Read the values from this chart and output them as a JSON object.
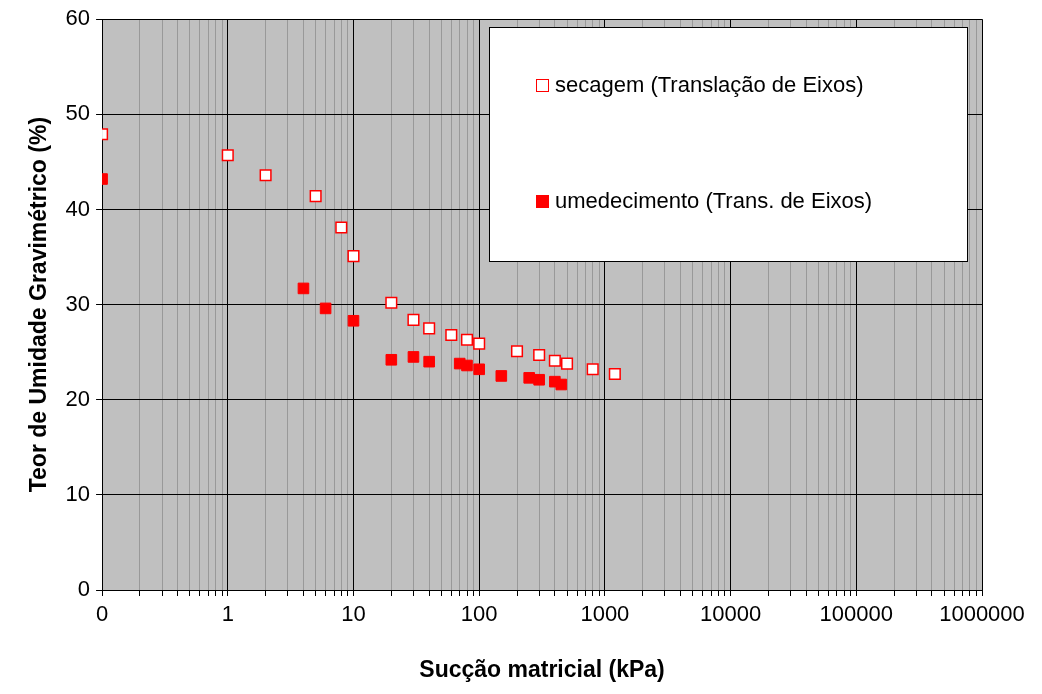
{
  "chart_data": {
    "type": "scatter",
    "xlabel": "Sucção matricial (kPa)",
    "ylabel": "Teor de Umidade Gravimétrico (%)",
    "log": "x",
    "grid": true,
    "legend": "top right",
    "marker": "square",
    "xlim": [
      0.1,
      1000000
    ],
    "ylim": [
      0,
      60
    ],
    "yticks": [
      0,
      10,
      20,
      30,
      40,
      50,
      60
    ],
    "xticks": [
      {
        "value": 0.1,
        "label": "0"
      },
      {
        "value": 0.2,
        "label": null
      },
      {
        "value": 0.3,
        "label": null
      },
      {
        "value": 0.4,
        "label": null
      },
      {
        "value": 0.5,
        "label": null
      },
      {
        "value": 0.6,
        "label": null
      },
      {
        "value": 0.7,
        "label": null
      },
      {
        "value": 0.8,
        "label": null
      },
      {
        "value": 0.9,
        "label": null
      },
      1,
      {
        "value": 2,
        "label": null
      },
      {
        "value": 3,
        "label": null
      },
      {
        "value": 4,
        "label": null
      },
      {
        "value": 5,
        "label": null
      },
      {
        "value": 6,
        "label": null
      },
      {
        "value": 7,
        "label": null
      },
      {
        "value": 8,
        "label": null
      },
      {
        "value": 9,
        "label": null
      },
      10,
      {
        "value": 20,
        "label": null
      },
      {
        "value": 30,
        "label": null
      },
      {
        "value": 40,
        "label": null
      },
      {
        "value": 50,
        "label": null
      },
      {
        "value": 60,
        "label": null
      },
      {
        "value": 70,
        "label": null
      },
      {
        "value": 80,
        "label": null
      },
      {
        "value": 90,
        "label": null
      },
      100,
      {
        "value": 200,
        "label": null
      },
      {
        "value": 300,
        "label": null
      },
      {
        "value": 400,
        "label": null
      },
      {
        "value": 500,
        "label": null
      },
      {
        "value": 600,
        "label": null
      },
      {
        "value": 700,
        "label": null
      },
      {
        "value": 800,
        "label": null
      },
      {
        "value": 900,
        "label": null
      },
      1000,
      {
        "value": 2000,
        "label": null
      },
      {
        "value": 3000,
        "label": null
      },
      {
        "value": 4000,
        "label": null
      },
      {
        "value": 5000,
        "label": null
      },
      {
        "value": 6000,
        "label": null
      },
      {
        "value": 7000,
        "label": null
      },
      {
        "value": 8000,
        "label": null
      },
      {
        "value": 9000,
        "label": null
      },
      10000,
      {
        "value": 20000,
        "label": null
      },
      {
        "value": 30000,
        "label": null
      },
      {
        "value": 40000,
        "label": null
      },
      {
        "value": 50000,
        "label": null
      },
      {
        "value": 60000,
        "label": null
      },
      {
        "value": 70000,
        "label": null
      },
      {
        "value": 80000,
        "label": null
      },
      {
        "value": 90000,
        "label": null
      },
      100000,
      {
        "value": 200000,
        "label": null
      },
      {
        "value": 300000,
        "label": null
      },
      {
        "value": 400000,
        "label": null
      },
      {
        "value": 500000,
        "label": null
      },
      {
        "value": 600000,
        "label": null
      },
      {
        "value": 700000,
        "label": null
      },
      {
        "value": 800000,
        "label": null
      },
      {
        "value": 900000,
        "label": null
      },
      1000000
    ],
    "series": [
      {
        "name": "secagem (Translação de Eixos)",
        "color": "#ff0000",
        "x": [
          0.1,
          1,
          2,
          5,
          8,
          10,
          20,
          30,
          40,
          60,
          80,
          100,
          200,
          300,
          400,
          500,
          800,
          1200
        ],
        "values": [
          47.9,
          45.7,
          43.6,
          41.4,
          38.1,
          35.1,
          30.2,
          28.4,
          27.5,
          26.8,
          26.3,
          25.9,
          25.1,
          24.7,
          24.1,
          23.8,
          23.2,
          22.7
        ]
      },
      {
        "name": "umedecimento (Trans. de Eixos)",
        "color": "#ff0000",
        "x": [
          0.1,
          4,
          6,
          10,
          20,
          30,
          40,
          70,
          80,
          100,
          150,
          250,
          300,
          400,
          450
        ],
        "values": [
          43.2,
          31.7,
          29.6,
          28.3,
          24.2,
          24.5,
          24.0,
          23.8,
          23.6,
          23.2,
          22.5,
          22.3,
          22.1,
          21.9,
          21.6
        ]
      }
    ]
  }
}
